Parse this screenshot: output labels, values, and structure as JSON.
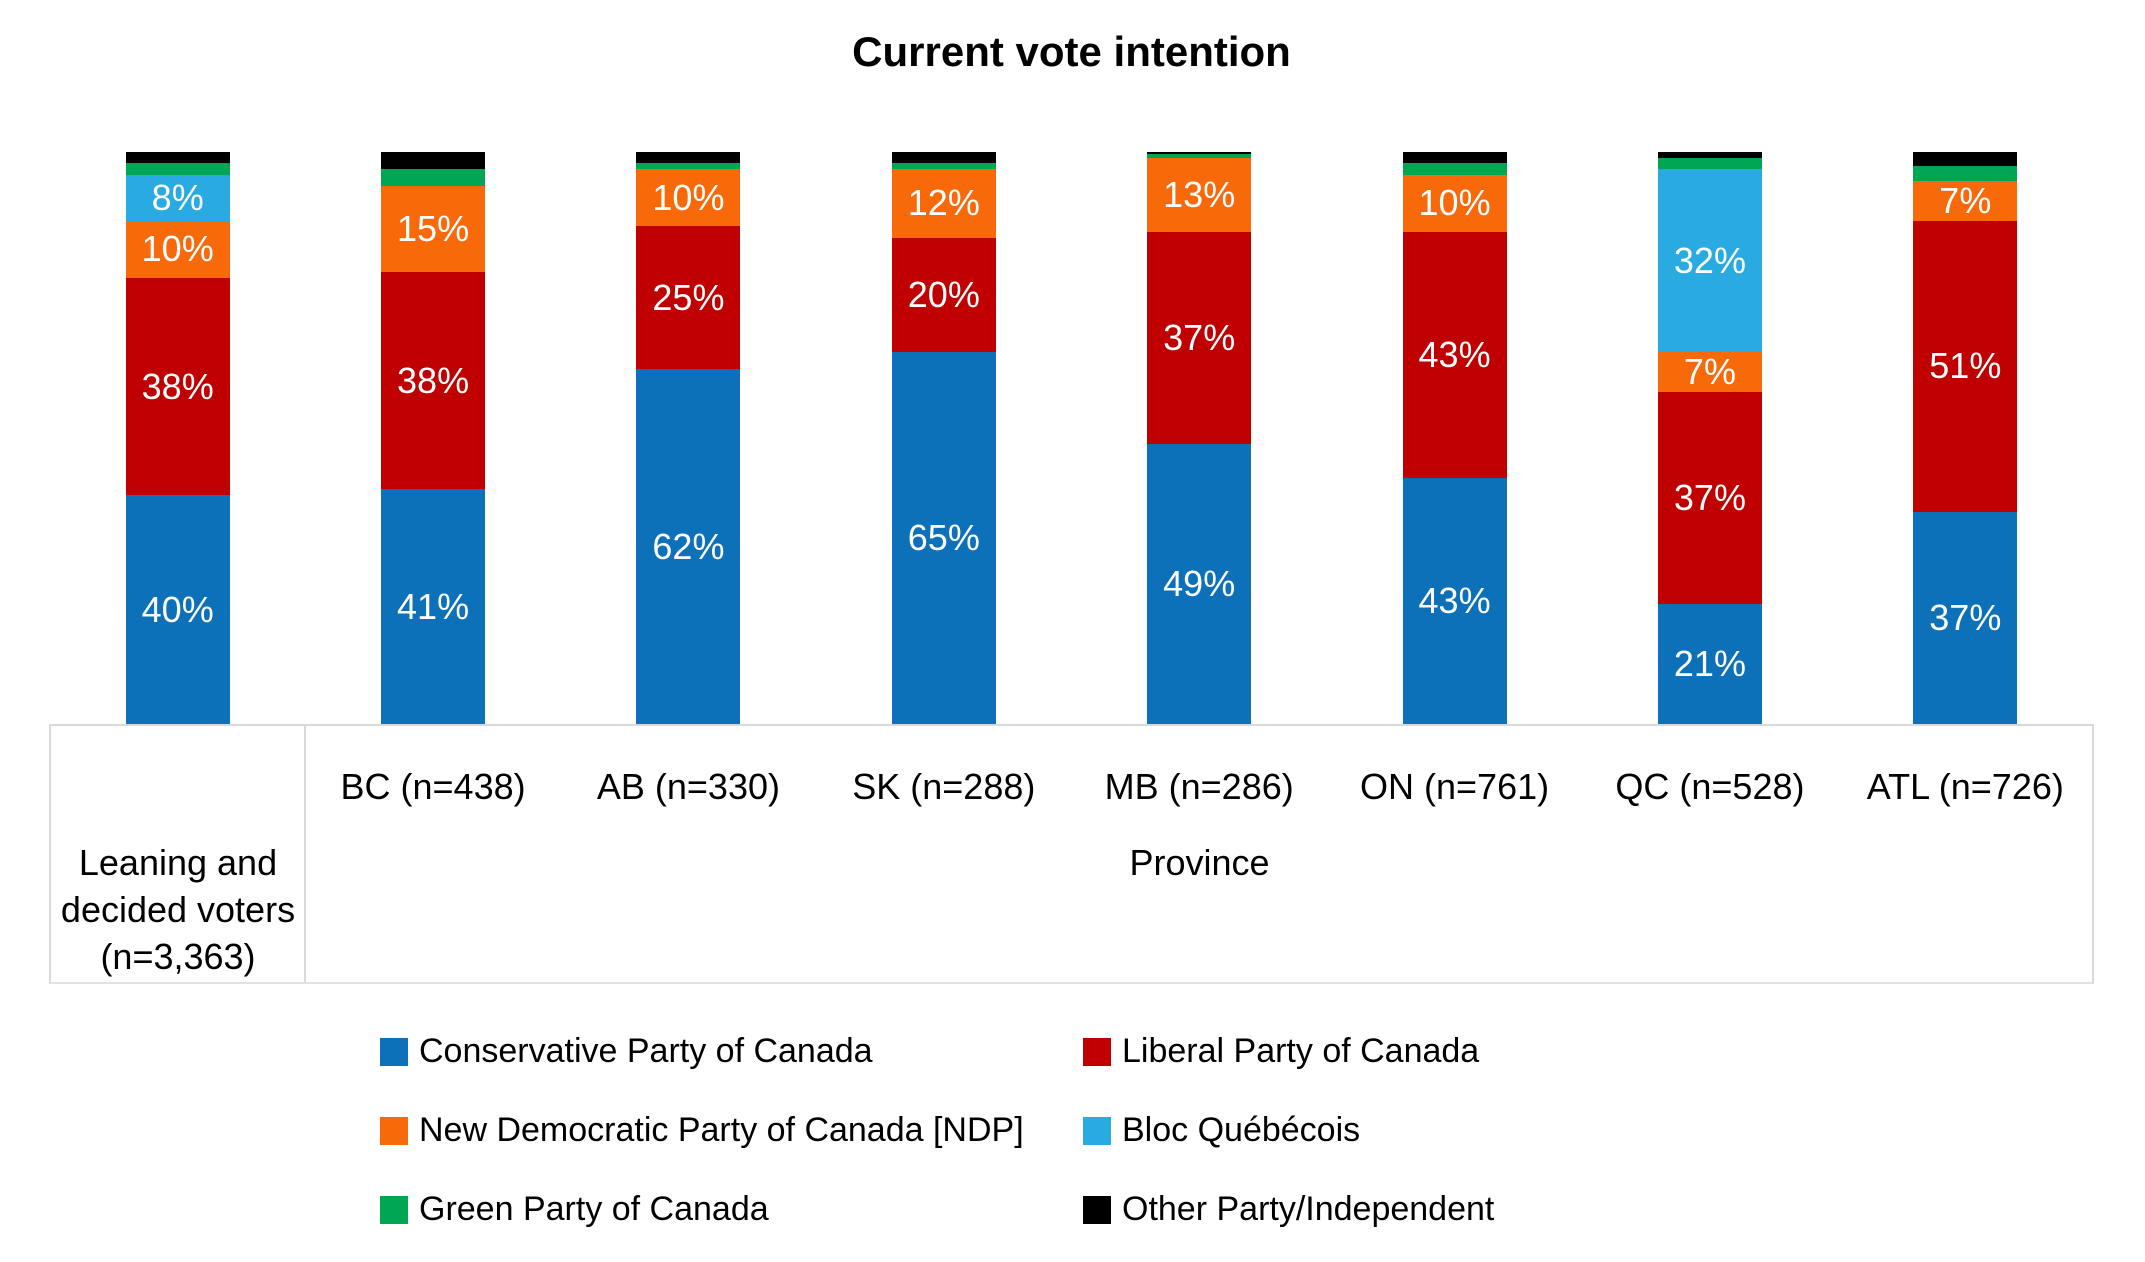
{
  "title": "Current vote intention",
  "colors": {
    "conservative": "#0D71BA",
    "liberal": "#C00000",
    "ndp": "#F8690A",
    "bloc": "#29ABE2",
    "green": "#00A651",
    "other": "#000000",
    "axis_border": "#D9D9D9",
    "data_label": "#FFFFFF"
  },
  "chart_data": {
    "type": "bar",
    "stacked": true,
    "orientation": "vertical",
    "unit": "percent",
    "ylim": [
      0,
      100
    ],
    "grid": false,
    "legend_position": "bottom",
    "categories": [
      "Leaning and decided voters (n=3,363)",
      "BC (n=438)",
      "AB (n=330)",
      "SK (n=288)",
      "MB (n=286)",
      "ON (n=761)",
      "QC (n=528)",
      "ATL (n=726)"
    ],
    "series": [
      {
        "name": "Conservative Party of Canada",
        "color_key": "conservative",
        "values": [
          40,
          41,
          62,
          65,
          49,
          43,
          21,
          37
        ],
        "labels": [
          "40%",
          "41%",
          "62%",
          "65%",
          "49%",
          "43%",
          "21%",
          "37%"
        ]
      },
      {
        "name": "Liberal Party of Canada",
        "color_key": "liberal",
        "values": [
          38,
          38,
          25,
          20,
          37,
          43,
          37,
          51
        ],
        "labels": [
          "38%",
          "38%",
          "25%",
          "20%",
          "37%",
          "43%",
          "37%",
          "51%"
        ]
      },
      {
        "name": "New Democratic Party of Canada [NDP]",
        "color_key": "ndp",
        "values": [
          10,
          15,
          10,
          12,
          13,
          10,
          7,
          7
        ],
        "labels": [
          "10%",
          "15%",
          "10%",
          "12%",
          "13%",
          "10%",
          "7%",
          "7%"
        ]
      },
      {
        "name": "Bloc Québécois",
        "color_key": "bloc",
        "values": [
          8,
          0,
          0,
          0,
          0,
          0,
          32,
          0
        ],
        "labels": [
          "8%",
          "",
          "",
          "",
          "",
          "",
          "32%",
          ""
        ]
      },
      {
        "name": "Green Party of Canada",
        "color_key": "green",
        "values": [
          2,
          3,
          1,
          1,
          0.7,
          2,
          2,
          2.5
        ],
        "labels": [
          "",
          "",
          "",
          "",
          "",
          "",
          "",
          ""
        ]
      },
      {
        "name": "Other Party/Independent",
        "color_key": "other",
        "values": [
          2,
          3,
          2,
          2,
          0.3,
          2,
          1,
          2.5
        ],
        "labels": [
          "",
          "",
          "",
          "",
          "",
          "",
          "",
          ""
        ]
      }
    ]
  },
  "axis": {
    "group1_label_lines": [
      "Leaning and",
      "decided voters",
      "(n=3,363)"
    ],
    "group2_label": "Province",
    "category_labels": [
      "BC (n=438)",
      "AB (n=330)",
      "SK (n=288)",
      "MB (n=286)",
      "ON (n=761)",
      "QC (n=528)",
      "ATL (n=726)"
    ]
  },
  "legend": {
    "items": [
      {
        "label": "Conservative Party of Canada",
        "color_key": "conservative"
      },
      {
        "label": "Liberal Party of Canada",
        "color_key": "liberal"
      },
      {
        "label": "New Democratic Party of Canada [NDP]",
        "color_key": "ndp"
      },
      {
        "label": "Bloc Québécois",
        "color_key": "bloc"
      },
      {
        "label": "Green Party of Canada",
        "color_key": "green"
      },
      {
        "label": "Other Party/Independent",
        "color_key": "other"
      }
    ]
  }
}
